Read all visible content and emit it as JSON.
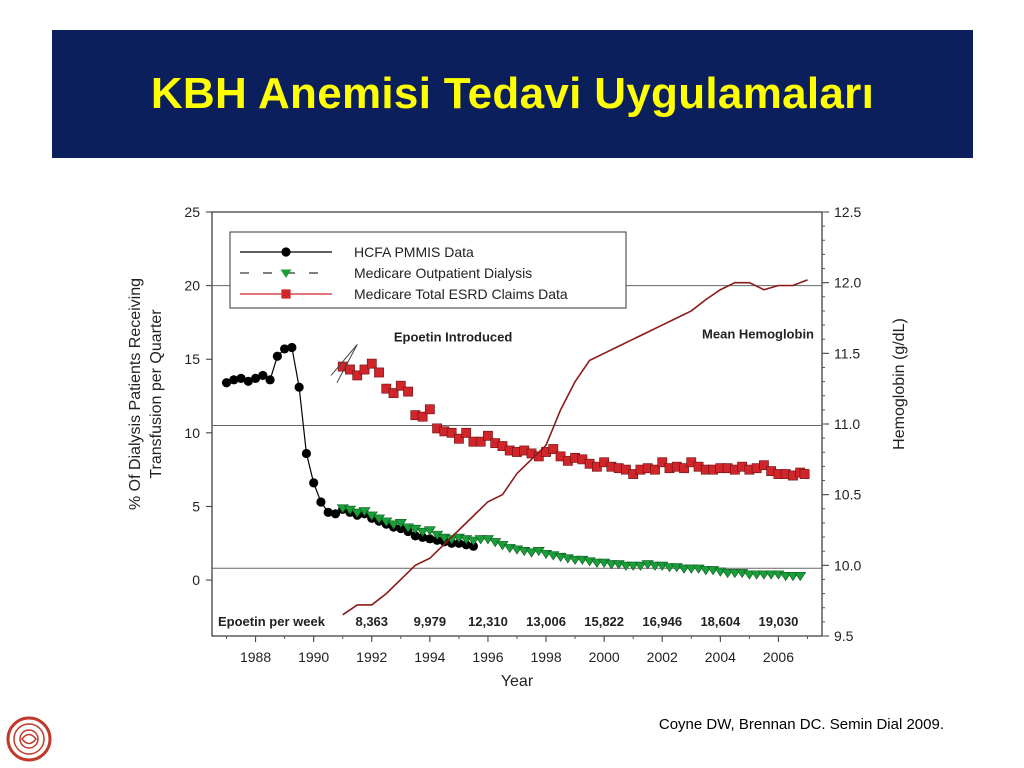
{
  "slide": {
    "title": "KBH Anemisi Tedavi Uygulamaları",
    "citation": "Coyne DW, Brennan DC. Semin Dial 2009."
  },
  "colors": {
    "title_bg": "#0b1f5c",
    "title_text": "#ffff00",
    "hcfa": "#000000",
    "outpatient": "#1a9e3a",
    "esrd": "#d0252a",
    "hemoglobin": "#8b1a1a"
  },
  "chart_data": {
    "type": "line",
    "xlabel": "Year",
    "ylabel_line1": "% Of Dialysis Patients Receiving",
    "ylabel_line2": "Transfusion per Quarter",
    "y2label": "Hemoglobin (g/dL)",
    "xlim": [
      1986.5,
      2007.5
    ],
    "ylim": [
      -3.8,
      25
    ],
    "y2lim": [
      9.5,
      12.5
    ],
    "x_ticks": [
      1988,
      1990,
      1992,
      1994,
      1996,
      1998,
      2000,
      2002,
      2004,
      2006
    ],
    "y_ticks": [
      0,
      5,
      10,
      15,
      20,
      25
    ],
    "y2_ticks": [
      "9.5",
      "10.0",
      "10.5",
      "11.0",
      "11.5",
      "12.0",
      "12.5"
    ],
    "reference_lines": [
      0.8,
      10.5,
      20
    ],
    "annotations": {
      "epoetin_introduced": "Epoetin Introduced",
      "mean_hemoglobin": "Mean Hemoglobin"
    },
    "epoetin_per_week": {
      "label": "Epoetin per week",
      "values": [
        {
          "x": 1992,
          "text": "8,363"
        },
        {
          "x": 1994,
          "text": "9,979"
        },
        {
          "x": 1996,
          "text": "12,310"
        },
        {
          "x": 1998,
          "text": "13,006"
        },
        {
          "x": 2000,
          "text": "15,822"
        },
        {
          "x": 2002,
          "text": "16,946"
        },
        {
          "x": 2004,
          "text": "18,604"
        },
        {
          "x": 2006,
          "text": "19,030"
        }
      ]
    },
    "series": [
      {
        "name": "HCFA PMMIS Data",
        "axis": "left",
        "marker": "circle",
        "color": "#000000",
        "x": [
          1987.0,
          1987.25,
          1987.5,
          1987.75,
          1988.0,
          1988.25,
          1988.5,
          1988.75,
          1989.0,
          1989.25,
          1989.5,
          1989.75,
          1990.0,
          1990.25,
          1990.5,
          1990.75,
          1991.0,
          1991.25,
          1991.5,
          1991.75,
          1992.0,
          1992.25,
          1992.5,
          1992.75,
          1993.0,
          1993.25,
          1993.5,
          1993.75,
          1994.0,
          1994.25,
          1994.5,
          1994.75,
          1995.0,
          1995.25,
          1995.5
        ],
        "y": [
          13.4,
          13.6,
          13.7,
          13.5,
          13.7,
          13.9,
          13.6,
          15.2,
          15.7,
          15.8,
          13.1,
          8.6,
          6.6,
          5.3,
          4.6,
          4.5,
          4.8,
          4.6,
          4.4,
          4.5,
          4.2,
          4.0,
          3.8,
          3.6,
          3.5,
          3.3,
          3.0,
          2.9,
          2.8,
          2.7,
          2.6,
          2.5,
          2.5,
          2.4,
          2.3
        ]
      },
      {
        "name": "Medicare Outpatient Dialysis",
        "axis": "left",
        "marker": "triangle-down",
        "color": "#1a9e3a",
        "x": [
          1991.0,
          1991.25,
          1991.5,
          1991.75,
          1992.0,
          1992.25,
          1992.5,
          1992.75,
          1993.0,
          1993.25,
          1993.5,
          1993.75,
          1994.0,
          1994.25,
          1994.5,
          1994.75,
          1995.0,
          1995.25,
          1995.5,
          1995.75,
          1996.0,
          1996.25,
          1996.5,
          1996.75,
          1997.0,
          1997.25,
          1997.5,
          1997.75,
          1998.0,
          1998.25,
          1998.5,
          1998.75,
          1999.0,
          1999.25,
          1999.5,
          1999.75,
          2000.0,
          2000.25,
          2000.5,
          2000.75,
          2001.0,
          2001.25,
          2001.5,
          2001.75,
          2002.0,
          2002.25,
          2002.5,
          2002.75,
          2003.0,
          2003.25,
          2003.5,
          2003.75,
          2004.0,
          2004.25,
          2004.5,
          2004.75,
          2005.0,
          2005.25,
          2005.5,
          2005.75,
          2006.0,
          2006.25,
          2006.5,
          2006.75
        ],
        "y": [
          4.9,
          4.8,
          4.6,
          4.7,
          4.4,
          4.2,
          4.0,
          3.8,
          3.9,
          3.6,
          3.5,
          3.3,
          3.4,
          3.1,
          2.9,
          2.8,
          2.9,
          2.8,
          2.7,
          2.8,
          2.8,
          2.6,
          2.4,
          2.2,
          2.1,
          2.0,
          1.9,
          2.0,
          1.8,
          1.7,
          1.6,
          1.5,
          1.4,
          1.4,
          1.3,
          1.2,
          1.2,
          1.1,
          1.1,
          1.0,
          1.0,
          1.0,
          1.1,
          1.0,
          1.0,
          0.9,
          0.9,
          0.8,
          0.8,
          0.8,
          0.7,
          0.7,
          0.6,
          0.5,
          0.5,
          0.5,
          0.4,
          0.4,
          0.4,
          0.4,
          0.4,
          0.3,
          0.3,
          0.3
        ]
      },
      {
        "name": "Medicare Total ESRD Claims Data",
        "axis": "left",
        "marker": "square",
        "color": "#d0252a",
        "x": [
          1991.0,
          1991.25,
          1991.5,
          1991.75,
          1992.0,
          1992.25,
          1992.5,
          1992.75,
          1993.0,
          1993.25,
          1993.5,
          1993.75,
          1994.0,
          1994.25,
          1994.5,
          1994.75,
          1995.0,
          1995.25,
          1995.5,
          1995.75,
          1996.0,
          1996.25,
          1996.5,
          1996.75,
          1997.0,
          1997.25,
          1997.5,
          1997.75,
          1998.0,
          1998.25,
          1998.5,
          1998.75,
          1999.0,
          1999.25,
          1999.5,
          1999.75,
          2000.0,
          2000.25,
          2000.5,
          2000.75,
          2001.0,
          2001.25,
          2001.5,
          2001.75,
          2002.0,
          2002.25,
          2002.5,
          2002.75,
          2003.0,
          2003.25,
          2003.5,
          2003.75,
          2004.0,
          2004.25,
          2004.5,
          2004.75,
          2005.0,
          2005.25,
          2005.5,
          2005.75,
          2006.0,
          2006.25,
          2006.5,
          2006.75,
          2006.9
        ],
        "y": [
          14.5,
          14.3,
          13.9,
          14.3,
          14.7,
          14.1,
          13.0,
          12.7,
          13.2,
          12.8,
          11.2,
          11.1,
          11.6,
          10.3,
          10.1,
          10.0,
          9.6,
          10.0,
          9.4,
          9.4,
          9.8,
          9.3,
          9.1,
          8.8,
          8.7,
          8.8,
          8.6,
          8.4,
          8.7,
          8.9,
          8.4,
          8.1,
          8.3,
          8.2,
          7.9,
          7.7,
          8.0,
          7.7,
          7.6,
          7.5,
          7.2,
          7.5,
          7.6,
          7.5,
          8.0,
          7.6,
          7.7,
          7.6,
          8.0,
          7.7,
          7.5,
          7.5,
          7.6,
          7.6,
          7.5,
          7.7,
          7.5,
          7.6,
          7.8,
          7.4,
          7.2,
          7.2,
          7.1,
          7.3,
          7.2
        ]
      },
      {
        "name": "Mean Hemoglobin",
        "axis": "right",
        "marker": "none",
        "color": "#8b1a1a",
        "x": [
          1991.0,
          1991.5,
          1992.0,
          1992.5,
          1993.0,
          1993.5,
          1994.0,
          1994.5,
          1995.0,
          1995.5,
          1996.0,
          1996.5,
          1997.0,
          1997.5,
          1998.0,
          1998.5,
          1999.0,
          1999.5,
          2000.0,
          2000.5,
          2001.0,
          2001.5,
          2002.0,
          2002.5,
          2003.0,
          2003.5,
          2004.0,
          2004.5,
          2005.0,
          2005.5,
          2006.0,
          2006.5,
          2007.0
        ],
        "y": [
          9.65,
          9.72,
          9.72,
          9.8,
          9.9,
          10.0,
          10.05,
          10.15,
          10.25,
          10.35,
          10.45,
          10.5,
          10.65,
          10.75,
          10.85,
          11.1,
          11.3,
          11.45,
          11.5,
          11.55,
          11.6,
          11.65,
          11.7,
          11.75,
          11.8,
          11.88,
          11.95,
          12.0,
          12.0,
          11.95,
          11.98,
          11.98,
          12.02
        ]
      }
    ]
  }
}
